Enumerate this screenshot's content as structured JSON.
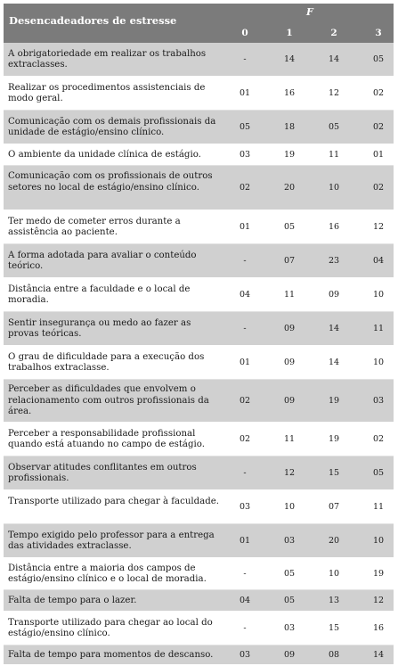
{
  "table": {
    "header_title": "Desencadeadores de estresse",
    "group_label": "F",
    "columns": [
      "0",
      "1",
      "2",
      "3"
    ],
    "rows": [
      {
        "label": "A obrigatoriedade em realizar os trabalhos extraclasses.",
        "values": [
          "-",
          "14",
          "14",
          "05"
        ]
      },
      {
        "label": "Realizar os procedimentos assistenciais de modo geral.",
        "values": [
          "01",
          "16",
          "12",
          "02"
        ]
      },
      {
        "label": "Comunicação com os demais profissionais da unidade de estágio/ensino clínico.",
        "values": [
          "05",
          "18",
          "05",
          "02"
        ]
      },
      {
        "label": "O ambiente da unidade clínica de estágio.",
        "values": [
          "03",
          "19",
          "11",
          "01"
        ]
      },
      {
        "label": "Comunicação com os profissionais de outros setores no local de estágio/ensino clínico.",
        "values": [
          "02",
          "20",
          "10",
          "02"
        ]
      },
      {
        "label": "Ter medo de cometer erros durante a assistência ao paciente.",
        "values": [
          "01",
          "05",
          "16",
          "12"
        ]
      },
      {
        "label": "A forma adotada para avaliar o conteúdo teórico.",
        "values": [
          "-",
          "07",
          "23",
          "04"
        ]
      },
      {
        "label": "Distância entre a faculdade e o local de moradia.",
        "values": [
          "04",
          "11",
          "09",
          "10"
        ]
      },
      {
        "label": "Sentir insegurança ou medo ao fazer as provas teóricas.",
        "values": [
          "-",
          "09",
          "14",
          "11"
        ]
      },
      {
        "label": "O grau de dificuldade para a execução dos trabalhos extraclasse.",
        "values": [
          "01",
          "09",
          "14",
          "10"
        ]
      },
      {
        "label": "Perceber as dificuldades que envolvem o relacionamento com outros profissionais da área.",
        "values": [
          "02",
          "09",
          "19",
          "03"
        ]
      },
      {
        "label": "Perceber a responsabilidade profissional quando está atuando no campo de estágio.",
        "values": [
          "02",
          "11",
          "19",
          "02"
        ]
      },
      {
        "label": "Observar atitudes conflitantes em outros profissionais.",
        "values": [
          "-",
          "12",
          "15",
          "05"
        ]
      },
      {
        "label": "Transporte utilizado para chegar à faculdade.",
        "values": [
          "03",
          "10",
          "07",
          "11"
        ]
      },
      {
        "label": "Tempo exigido pelo professor para a entrega das atividades extraclasse.",
        "values": [
          "01",
          "03",
          "20",
          "10"
        ]
      },
      {
        "label": "Distância entre a maioria dos campos de estágio/ensino clínico e o local de moradia.",
        "values": [
          "-",
          "05",
          "10",
          "19"
        ]
      },
      {
        "label": "Falta de tempo para o lazer.",
        "values": [
          "04",
          "05",
          "13",
          "12"
        ]
      },
      {
        "label": "Transporte utilizado para chegar ao local do estágio/ensino clínico.",
        "values": [
          "-",
          "03",
          "15",
          "16"
        ]
      },
      {
        "label": "Falta de tempo para momentos de descanso.",
        "values": [
          "03",
          "09",
          "08",
          "14"
        ]
      }
    ]
  }
}
